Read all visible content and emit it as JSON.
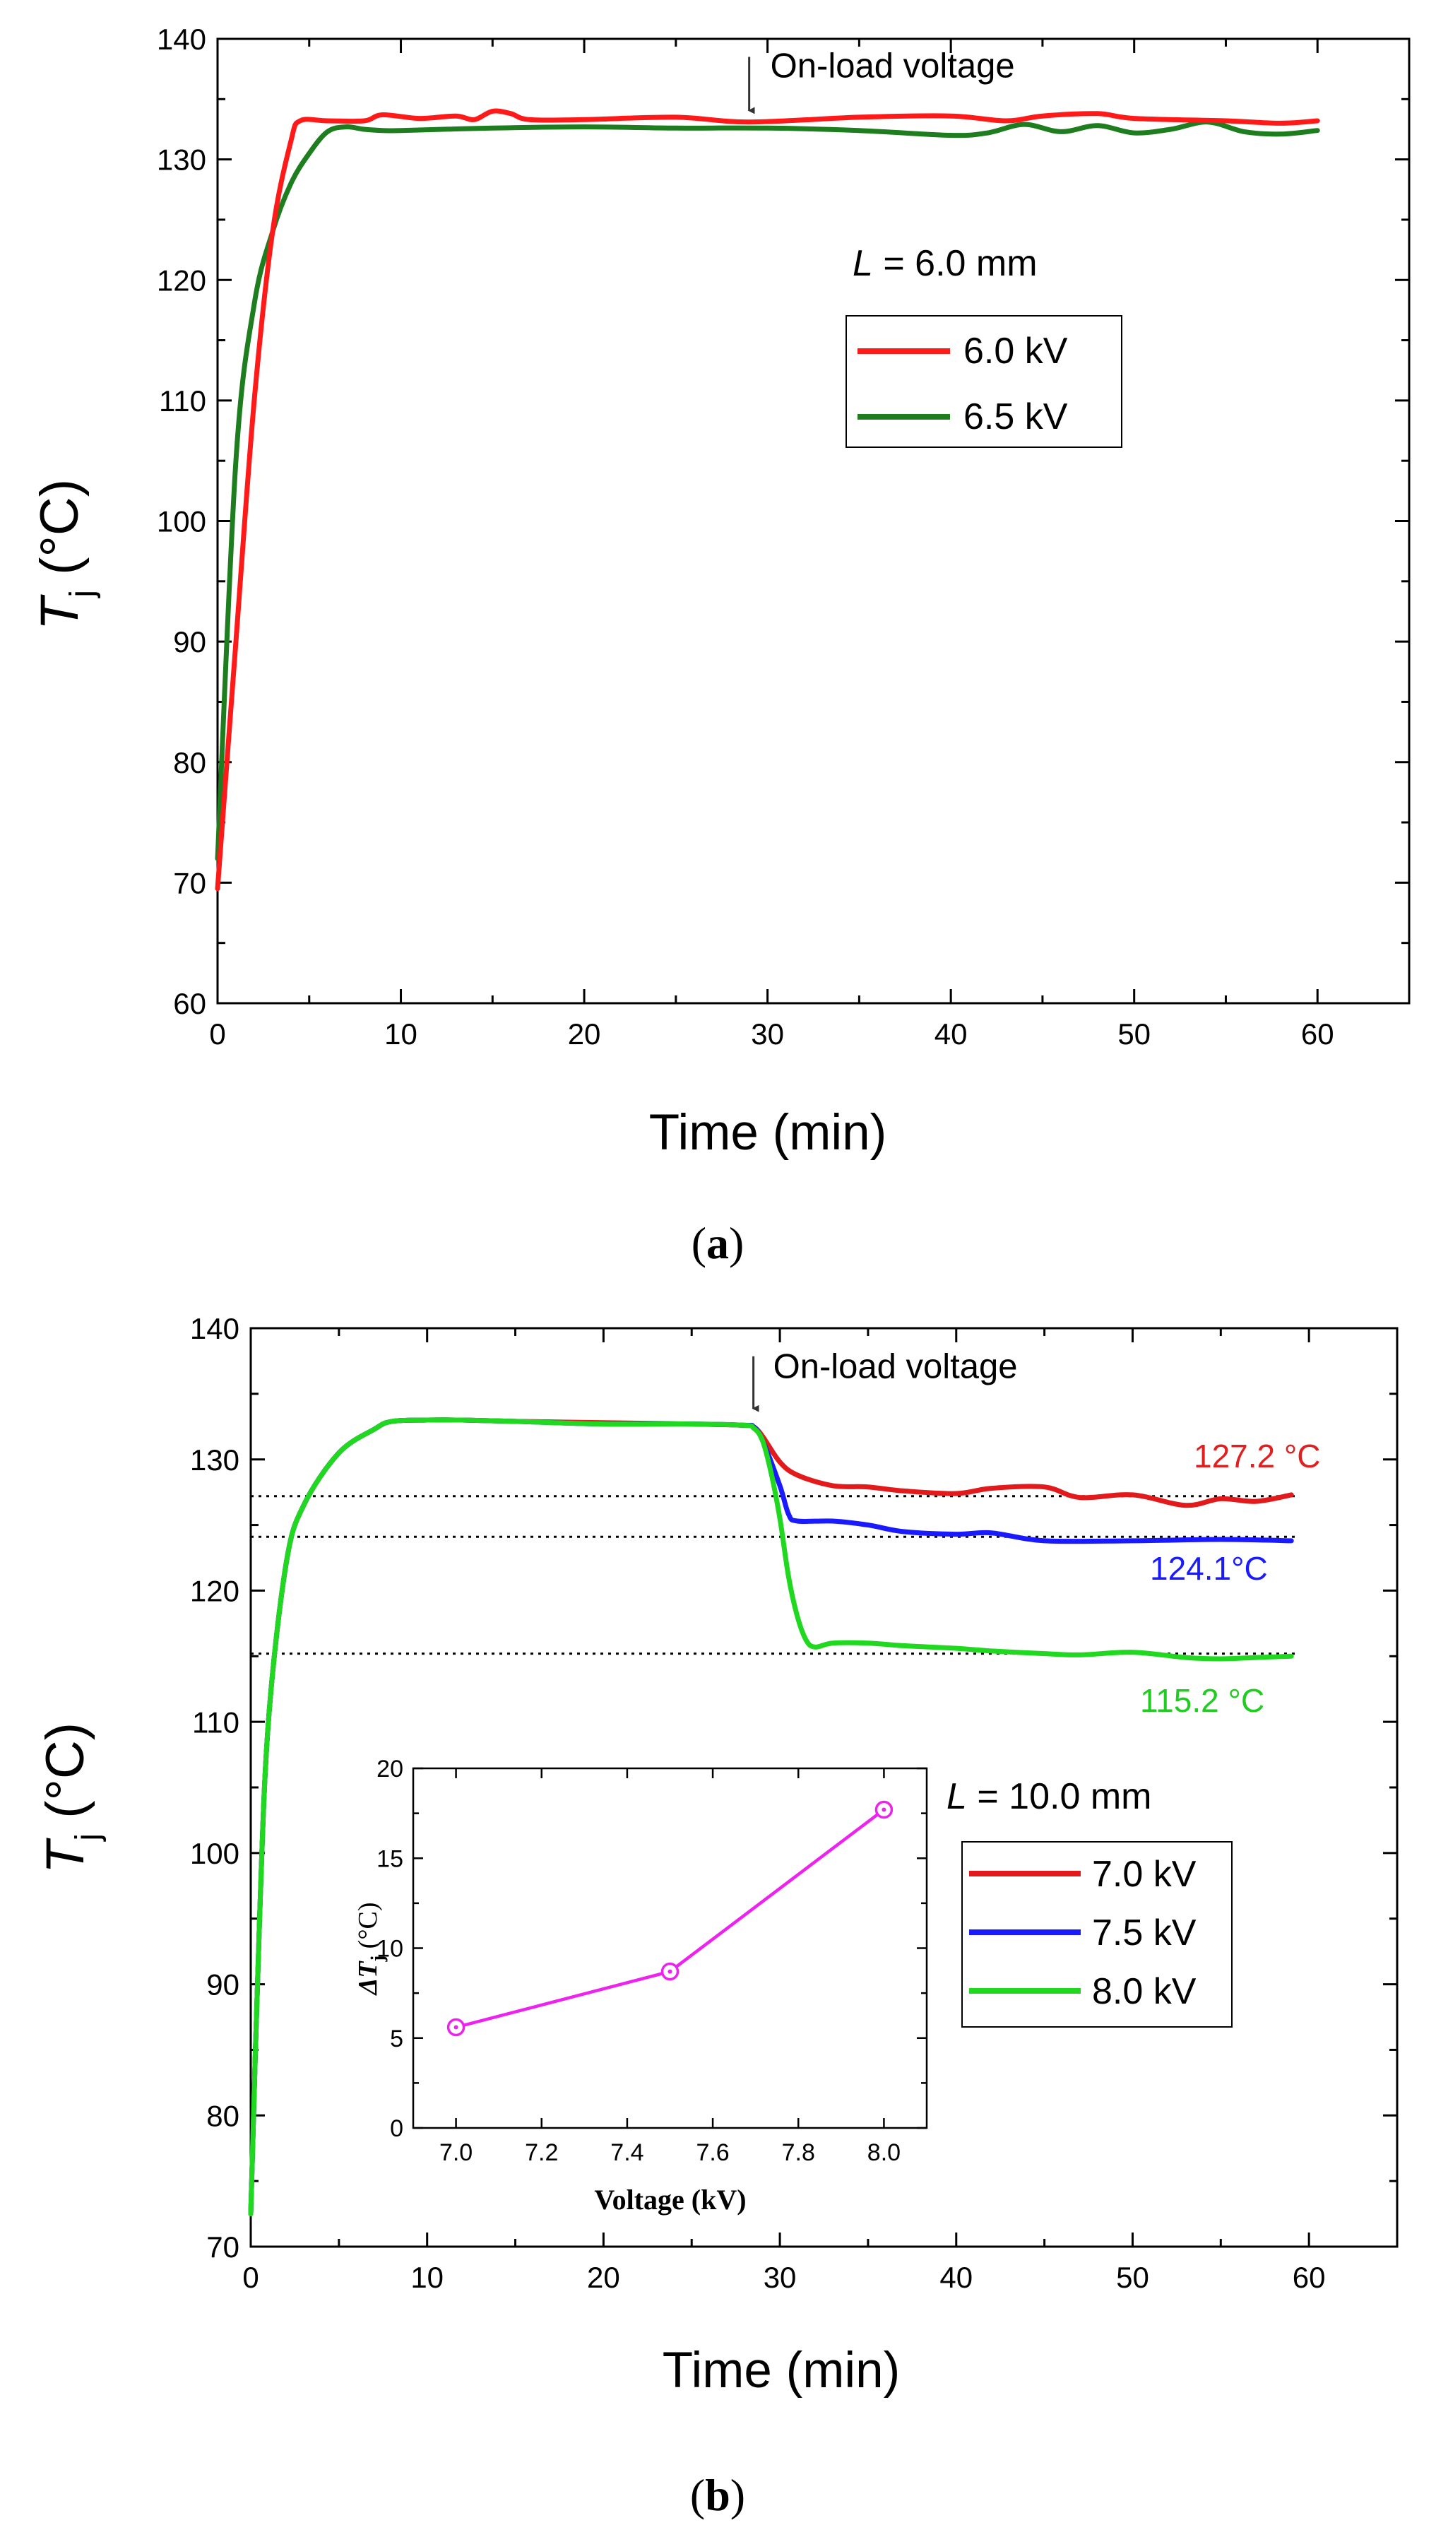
{
  "figure": {
    "panel_a_caption": {
      "open": "(",
      "letter": "a",
      "close": ")"
    },
    "panel_b_caption": {
      "open": "(",
      "letter": "b",
      "close": ")"
    }
  },
  "chart_data": [
    {
      "type": "line",
      "panel": "a",
      "xlabel": "Time (min)",
      "ylabel": {
        "symbol": "T",
        "subscript": "j",
        "unit": " (°C)"
      },
      "xlim": [
        0,
        65
      ],
      "ylim": [
        60,
        140
      ],
      "xticks": [
        0,
        10,
        20,
        30,
        40,
        50,
        60
      ],
      "yticks": [
        60,
        70,
        80,
        90,
        100,
        110,
        120,
        130,
        140
      ],
      "grid": false,
      "legend_position": "center-right",
      "legend_title": {
        "symbol": "L",
        "rest": " = 6.0 mm"
      },
      "annotation": {
        "text": "On-load voltage",
        "x": 29,
        "y": 133
      },
      "series": [
        {
          "name": "6.0 kV",
          "color": "#ff1a1a",
          "x": [
            0,
            1,
            2,
            3,
            4,
            4.5,
            6,
            8,
            9,
            11,
            13,
            14,
            15,
            16,
            17,
            20,
            25,
            29,
            35,
            40,
            43,
            45,
            48,
            50,
            55,
            58,
            60
          ],
          "y": [
            69.5,
            90,
            110,
            124,
            131.5,
            133.2,
            133.2,
            133.2,
            133.7,
            133.4,
            133.6,
            133.3,
            134.0,
            133.8,
            133.3,
            133.3,
            133.5,
            133.1,
            133.5,
            133.6,
            133.2,
            133.6,
            133.8,
            133.4,
            133.2,
            133.0,
            133.2
          ]
        },
        {
          "name": "6.5 kV",
          "color": "#1e7d1e",
          "x": [
            0,
            1,
            2,
            3,
            4,
            5,
            6,
            7,
            8,
            9,
            10,
            15,
            20,
            25,
            30,
            35,
            40,
            42,
            44,
            46,
            48,
            50,
            52,
            54,
            56,
            58,
            60
          ],
          "y": [
            72,
            105,
            118,
            124,
            128,
            130.5,
            132.3,
            132.7,
            132.5,
            132.4,
            132.4,
            132.6,
            132.7,
            132.6,
            132.6,
            132.4,
            132.0,
            132.2,
            132.9,
            132.3,
            132.8,
            132.2,
            132.5,
            133.1,
            132.3,
            132.1,
            132.4
          ]
        }
      ]
    },
    {
      "type": "line",
      "panel": "b",
      "xlabel": "Time (min)",
      "ylabel": {
        "symbol": "T",
        "subscript": "j",
        "unit": " (°C)"
      },
      "xlim": [
        0,
        65
      ],
      "ylim": [
        70,
        140
      ],
      "xticks": [
        0,
        10,
        20,
        30,
        40,
        50,
        60
      ],
      "yticks": [
        70,
        80,
        90,
        100,
        110,
        120,
        130,
        140
      ],
      "grid": false,
      "legend_position": "center-right",
      "legend_title": {
        "symbol": "L",
        "rest": " = 10.0 mm"
      },
      "annotation": {
        "text": "On-load voltage",
        "x": 28.5,
        "y": 132.8
      },
      "reference_lines": [
        {
          "y": 127.2,
          "label": "127.2 °C",
          "color": "#e02020"
        },
        {
          "y": 124.1,
          "label": "124.1°C",
          "color": "#1a1aff"
        },
        {
          "y": 115.2,
          "label": "115.2 °C",
          "color": "#1fcc1f"
        }
      ],
      "series": [
        {
          "name": "7.0 kV",
          "color": "#e31a1c",
          "x": [
            0,
            0.5,
            1,
            2,
            3,
            5,
            7,
            8,
            10,
            12,
            15,
            20,
            25,
            28,
            28.5,
            29,
            30,
            31,
            33,
            35,
            37,
            40,
            42,
            45,
            47,
            50,
            53,
            55,
            57,
            59
          ],
          "y": [
            72.5,
            95,
            110,
            122,
            126.5,
            130.5,
            132.3,
            132.9,
            133.0,
            133.0,
            132.9,
            132.8,
            132.7,
            132.6,
            132.5,
            131.8,
            129.8,
            128.8,
            128.0,
            127.9,
            127.6,
            127.4,
            127.8,
            127.9,
            127.1,
            127.3,
            126.5,
            127.0,
            126.8,
            127.3
          ]
        },
        {
          "name": "7.5 kV",
          "color": "#1a1aff",
          "x": [
            0,
            0.5,
            1,
            2,
            3,
            5,
            7,
            8,
            10,
            12,
            15,
            20,
            25,
            28,
            28.5,
            29,
            30,
            30.5,
            31,
            33,
            35,
            37,
            40,
            42,
            45,
            50,
            55,
            59
          ],
          "y": [
            72.5,
            95,
            110,
            122,
            126.5,
            130.5,
            132.3,
            132.9,
            133.0,
            133.0,
            132.9,
            132.7,
            132.7,
            132.6,
            132.5,
            131.5,
            128.0,
            125.8,
            125.3,
            125.3,
            125.0,
            124.5,
            124.3,
            124.4,
            123.8,
            123.8,
            123.9,
            123.8
          ]
        },
        {
          "name": "8.0 kV",
          "color": "#1fd81f",
          "x": [
            0,
            0.5,
            1,
            2,
            3,
            5,
            7,
            8,
            10,
            12,
            15,
            20,
            25,
            28,
            28.5,
            29,
            29.5,
            30,
            30.5,
            31,
            31.5,
            32,
            33,
            35,
            37,
            40,
            42,
            45,
            47,
            50,
            53,
            55,
            57,
            59
          ],
          "y": [
            72.5,
            95,
            110,
            122,
            126.5,
            130.5,
            132.3,
            132.9,
            133.0,
            133.0,
            132.9,
            132.7,
            132.7,
            132.6,
            132.4,
            131.5,
            129.0,
            125.5,
            121.0,
            118.0,
            116.2,
            115.7,
            116.0,
            116.0,
            115.8,
            115.6,
            115.4,
            115.2,
            115.1,
            115.3,
            114.9,
            114.8,
            114.9,
            115.0
          ]
        }
      ]
    },
    {
      "type": "line",
      "panel": "b-inset",
      "xlabel": "Voltage (kV)",
      "ylabel": {
        "symbol": "ΔT",
        "subscript": "j",
        "unit": " (°C)"
      },
      "xlim": [
        6.9,
        8.1
      ],
      "ylim": [
        0,
        20
      ],
      "xticks": [
        "7.0",
        "7.2",
        "7.4",
        "7.6",
        "7.8",
        "8.0"
      ],
      "yticks": [
        0,
        5,
        10,
        15,
        20
      ],
      "grid": false,
      "marker": "circle",
      "series": [
        {
          "name": "ΔTj",
          "color": "#ee22ee",
          "x": [
            7.0,
            7.5,
            8.0
          ],
          "y": [
            5.6,
            8.7,
            17.7
          ]
        }
      ]
    }
  ]
}
